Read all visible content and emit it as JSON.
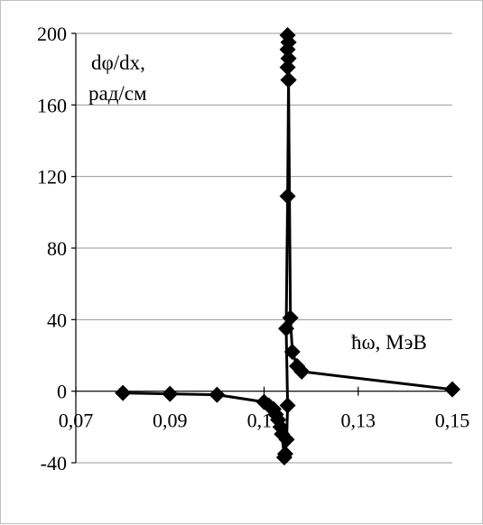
{
  "chart_data": {
    "type": "line",
    "title": "",
    "ylabel_line1": "dφ/dx,",
    "ylabel_line2": "рад/см",
    "xlabel": "ħω, МэВ",
    "xlim": [
      0.07,
      0.15
    ],
    "ylim": [
      -40,
      200
    ],
    "xticks": [
      0.07,
      0.09,
      0.11,
      0.13,
      0.15
    ],
    "xtick_labels": [
      "0,07",
      "0,09",
      "0,11",
      "0,13",
      "0,15"
    ],
    "yticks": [
      200,
      160,
      120,
      80,
      40,
      0,
      -40
    ],
    "ytick_labels": [
      "200",
      "160",
      "120",
      "80",
      "40",
      "0",
      "-40"
    ],
    "grid": "horizontal",
    "legend": "none",
    "marker": "diamond",
    "line_color": "#000000",
    "series": [
      {
        "points": [
          [
            0.08,
            -1
          ],
          [
            0.09,
            -1.5
          ],
          [
            0.1,
            -2
          ],
          [
            0.11,
            -6
          ],
          [
            0.111,
            -8
          ],
          [
            0.112,
            -10
          ],
          [
            0.1125,
            -13
          ],
          [
            0.113,
            -16
          ],
          [
            0.1135,
            -20
          ],
          [
            0.1138,
            -24
          ],
          [
            0.1143,
            -37
          ],
          [
            0.1145,
            -35
          ],
          [
            0.1148,
            -27
          ],
          [
            0.115,
            -8
          ],
          [
            0.1147,
            35
          ],
          [
            0.115,
            109
          ],
          [
            0.1152,
            174
          ],
          [
            0.115,
            181
          ],
          [
            0.1152,
            186
          ],
          [
            0.115,
            191
          ],
          [
            0.1152,
            195
          ],
          [
            0.115,
            199
          ],
          [
            0.1152,
            174
          ],
          [
            0.1156,
            41
          ],
          [
            0.116,
            22
          ],
          [
            0.117,
            14
          ],
          [
            0.118,
            11
          ],
          [
            0.15,
            1
          ]
        ]
      }
    ]
  }
}
